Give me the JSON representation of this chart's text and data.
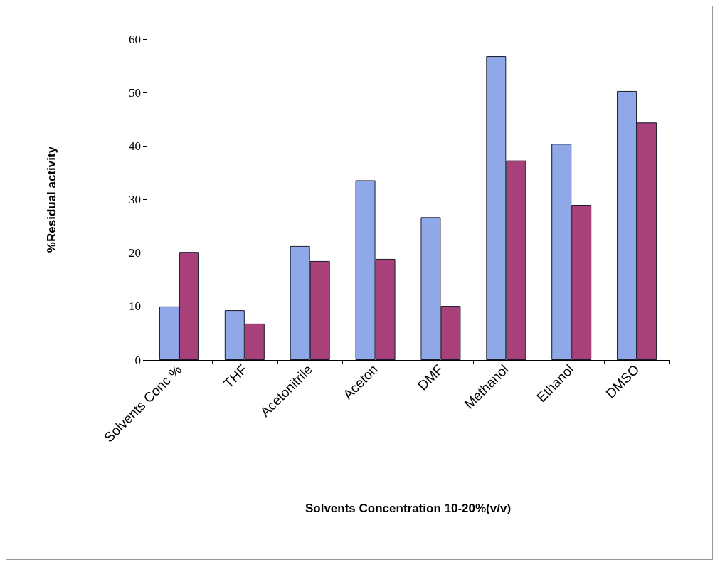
{
  "chart_data": {
    "type": "bar",
    "xlabel": "Solvents Concentration 10-20%(v/v)",
    "ylabel": "%Residual activity",
    "categories": [
      "Solvents Conc %",
      "THF",
      "Acetonitrile",
      "Aceton",
      "DMF",
      "Methanol",
      "Ethanol",
      "DMSO"
    ],
    "series": [
      {
        "color": "#8fa8e8",
        "values": [
          10,
          9.3,
          21.3,
          33.6,
          26.7,
          56.8,
          40.4,
          50.3
        ]
      },
      {
        "color": "#a8417a",
        "values": [
          20.2,
          6.8,
          18.5,
          18.9,
          10.1,
          37.3,
          29,
          44.4
        ]
      }
    ],
    "ylim": [
      0,
      60
    ],
    "yticks": [
      0,
      10,
      20,
      30,
      40,
      50,
      60
    ],
    "grid": false
  }
}
